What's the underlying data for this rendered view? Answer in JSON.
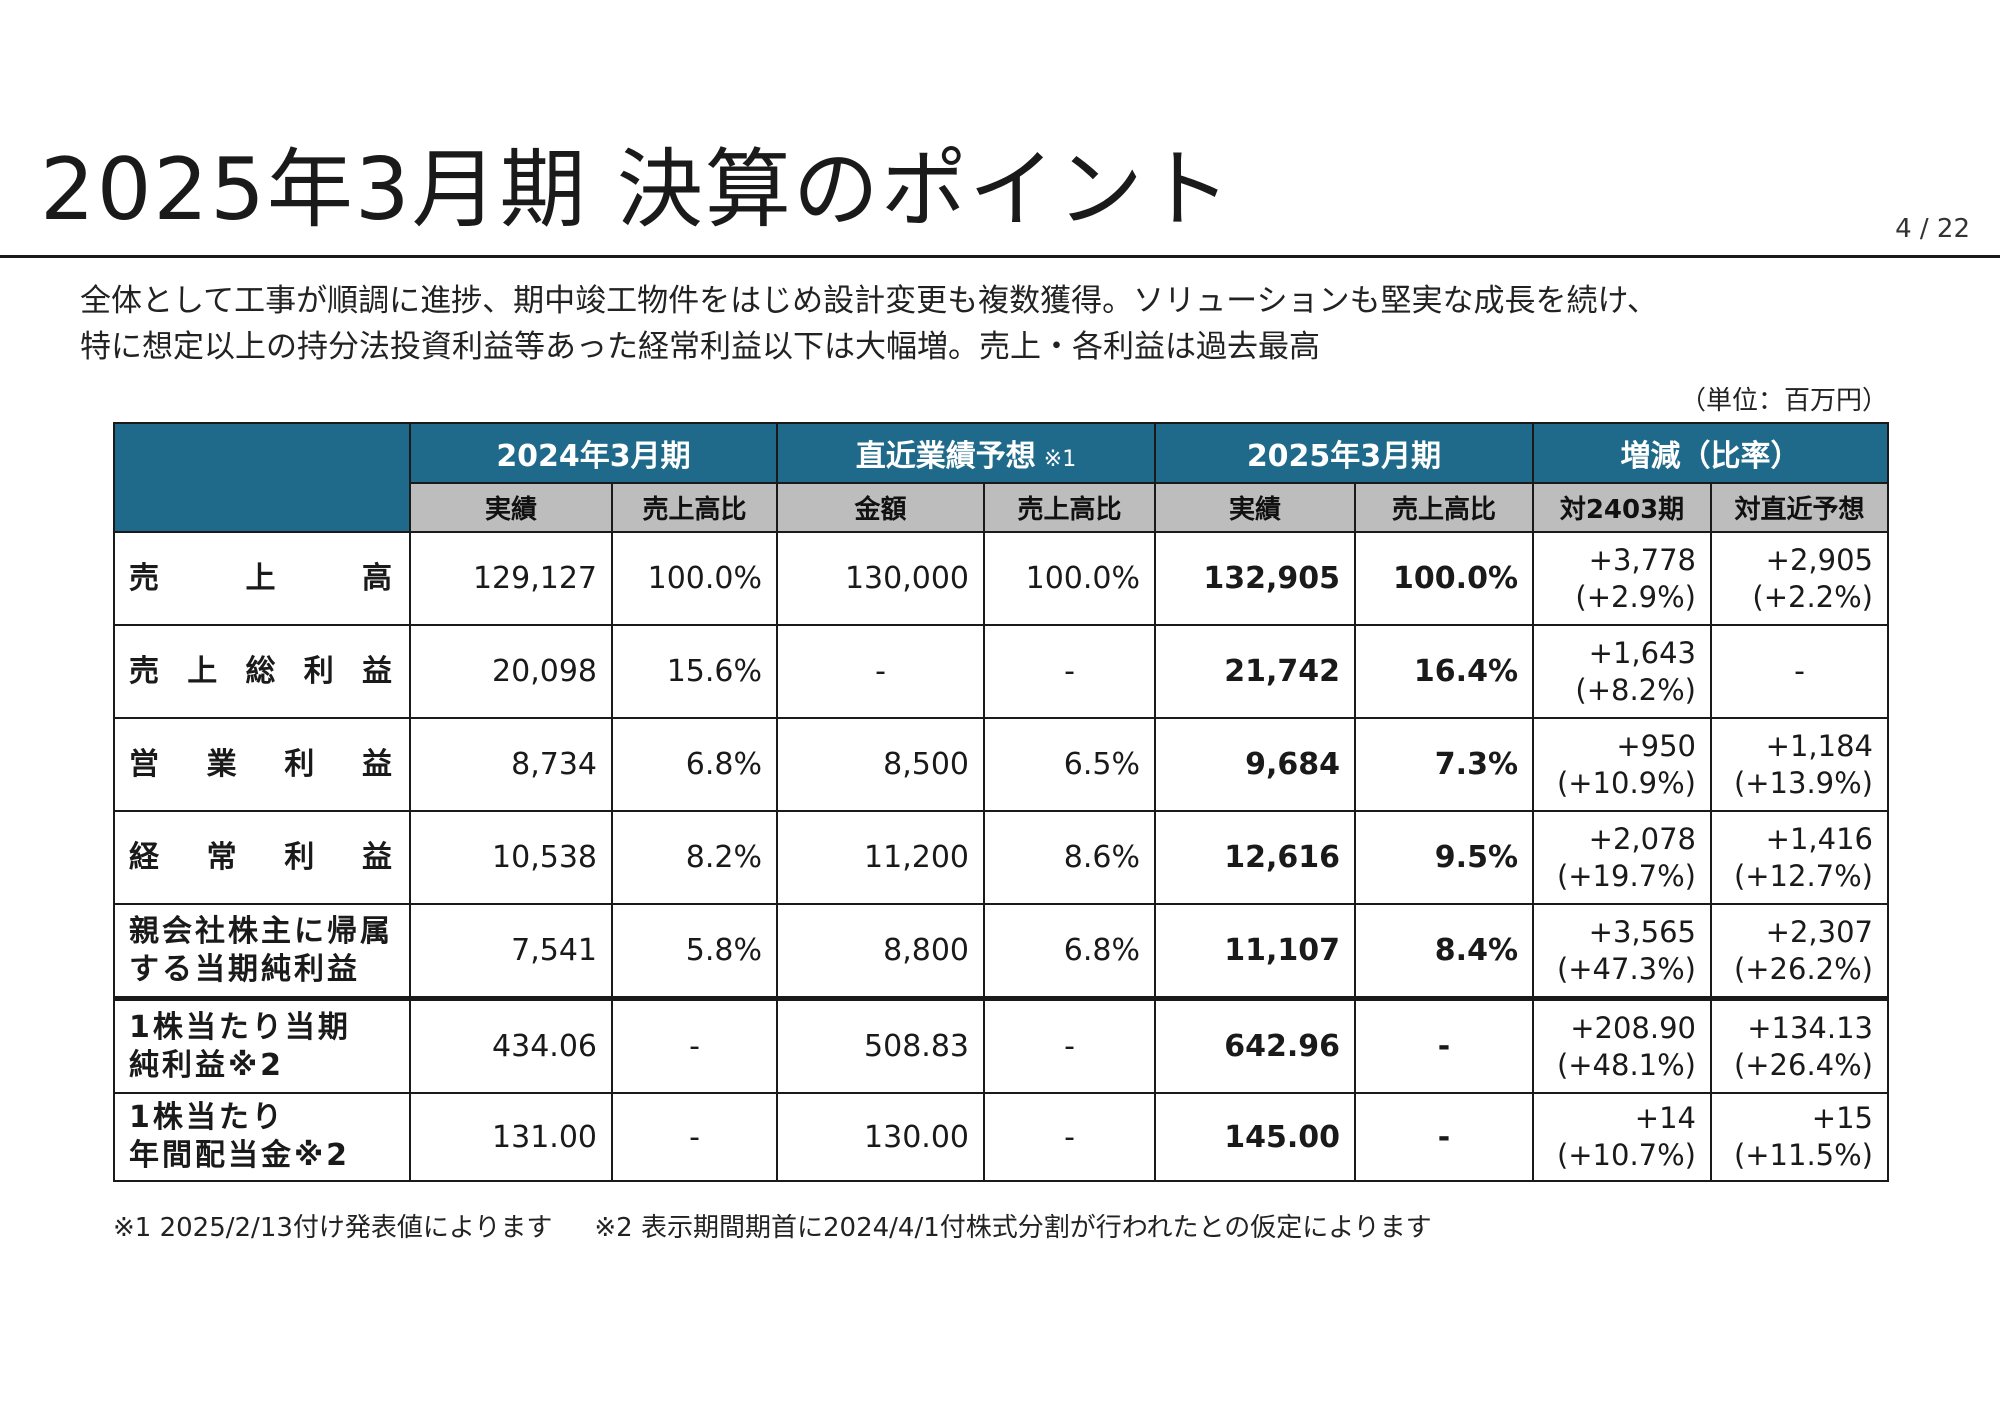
{
  "header": {
    "title": "2025年3月期 決算のポイント",
    "page_number": "4 / 22"
  },
  "summary": {
    "line1": "全体として工事が順調に進捗、期中竣工物件をはじめ設計変更も複数獲得。ソリューションも堅実な成長を続け、",
    "line2": "特に想定以上の持分法投資利益等あった経常利益以下は大幅増。売上・各利益は過去最高"
  },
  "unit_note": "（単位：百万円）",
  "table": {
    "groups": {
      "g2024": "2024年3月期",
      "forecast": "直近業績予想",
      "forecast_note": "※1",
      "g2025": "2025年3月期",
      "change": "増減（比率）"
    },
    "subheaders": {
      "actual_2024": "実績",
      "ratio_2024": "売上高比",
      "amount_fc": "金額",
      "ratio_fc": "売上高比",
      "actual_2025": "実績",
      "ratio_2025": "売上高比",
      "vs_2403": "対2403期",
      "vs_fc": "対直近予想"
    },
    "rows": [
      {
        "label": "売上高",
        "a2024": "129,127",
        "r2024": "100.0%",
        "fc": "130,000",
        "rfc": "100.0%",
        "a2025": "132,905",
        "r2025": "100.0%",
        "d1": "+3,778",
        "p1": "(+2.9%)",
        "d2": "+2,905",
        "p2": "(+2.2%)"
      },
      {
        "label": "売上総利益",
        "a2024": "20,098",
        "r2024": "15.6%",
        "fc": "-",
        "rfc": "-",
        "a2025": "21,742",
        "r2025": "16.4%",
        "d1": "+1,643",
        "p1": "(+8.2%)",
        "d2": "-",
        "p2": ""
      },
      {
        "label": "営業利益",
        "a2024": "8,734",
        "r2024": "6.8%",
        "fc": "8,500",
        "rfc": "6.5%",
        "a2025": "9,684",
        "r2025": "7.3%",
        "d1": "+950",
        "p1": "(+10.9%)",
        "d2": "+1,184",
        "p2": "(+13.9%)"
      },
      {
        "label": "経常利益",
        "a2024": "10,538",
        "r2024": "8.2%",
        "fc": "11,200",
        "rfc": "8.6%",
        "a2025": "12,616",
        "r2025": "9.5%",
        "d1": "+2,078",
        "p1": "(+19.7%)",
        "d2": "+1,416",
        "p2": "(+12.7%)"
      },
      {
        "label1": "親会社株主に帰属",
        "label2": "する当期純利益",
        "a2024": "7,541",
        "r2024": "5.8%",
        "fc": "8,800",
        "rfc": "6.8%",
        "a2025": "11,107",
        "r2025": "8.4%",
        "d1": "+3,565",
        "p1": "(+47.3%)",
        "d2": "+2,307",
        "p2": "(+26.2%)"
      },
      {
        "label1": "1株当たり当期",
        "label2": "純利益※2",
        "a2024": "434.06",
        "r2024": "-",
        "fc": "508.83",
        "rfc": "-",
        "a2025": "642.96",
        "r2025": "-",
        "d1": "+208.90",
        "p1": "(+48.1%)",
        "d2": "+134.13",
        "p2": "(+26.4%)"
      },
      {
        "label1": "1株当たり",
        "label2": "年間配当金※2",
        "a2024": "131.00",
        "r2024": "-",
        "fc": "130.00",
        "rfc": "-",
        "a2025": "145.00",
        "r2025": "-",
        "d1": "+14",
        "p1": "(+10.7%)",
        "d2": "+15",
        "p2": "(+11.5%)"
      }
    ]
  },
  "footnotes": {
    "note1": "※1 2025/2/13付け発表値によります",
    "note2": "※2 表示期間期首に2024/4/1付株式分割が行われたとの仮定によります"
  },
  "colors": {
    "header_blue": "#1f6a8a",
    "subheader_gray": "#bdbdbd"
  }
}
